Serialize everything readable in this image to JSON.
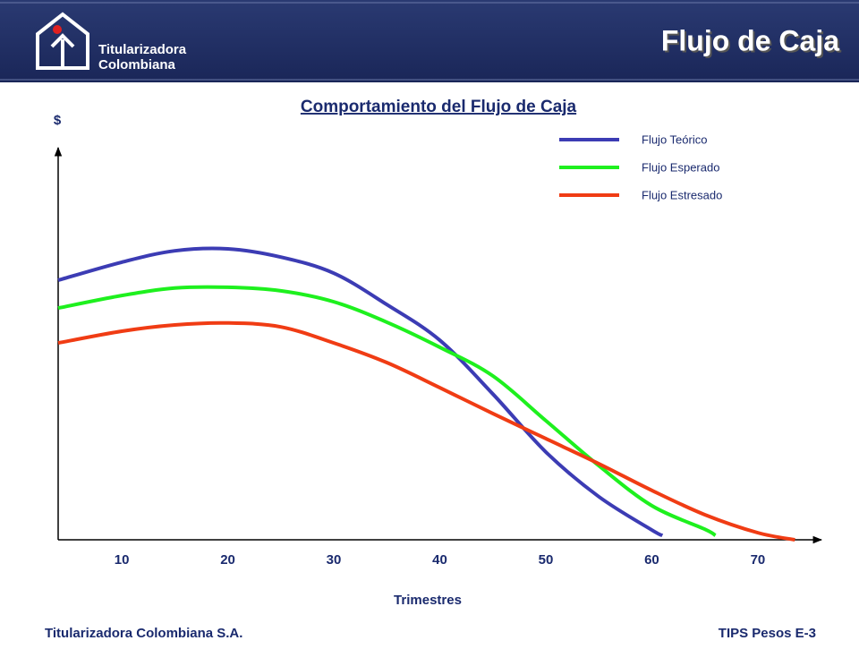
{
  "header": {
    "logo_line1": "Titularizadora",
    "logo_line2": "Colombiana",
    "title": "Flujo de Caja"
  },
  "chart_data": {
    "type": "line",
    "title": "Comportamiento del Flujo de Caja",
    "y_label": "$",
    "x_label": "Trimestres",
    "xlim": [
      4,
      76
    ],
    "xticks": [
      10,
      20,
      30,
      40,
      50,
      60,
      70
    ],
    "ylim": [
      0,
      100
    ],
    "series": [
      {
        "name": "Flujo Teórico",
        "color": "#3c3cb4",
        "x": [
          4,
          10,
          15,
          20,
          25,
          30,
          35,
          40,
          45,
          50,
          55,
          60,
          61
        ],
        "values": [
          66.2,
          70.8,
          73.7,
          74.2,
          72.1,
          68.0,
          60.0,
          50.9,
          37.2,
          22.4,
          11.0,
          2.5,
          1.1
        ]
      },
      {
        "name": "Flujo Esperado",
        "color": "#1ef01e",
        "x": [
          4,
          10,
          15,
          20,
          25,
          30,
          35,
          40,
          45,
          50,
          55,
          60,
          65,
          66
        ],
        "values": [
          59.1,
          62.3,
          64.2,
          64.4,
          63.5,
          60.7,
          55.5,
          49.1,
          41.8,
          30.4,
          18.9,
          8.7,
          2.7,
          1.1
        ]
      },
      {
        "name": "Flujo Estresado",
        "color": "#f03c14",
        "x": [
          4,
          10,
          15,
          20,
          25,
          30,
          35,
          40,
          45,
          50,
          55,
          60,
          65,
          70,
          73.5
        ],
        "values": [
          50.2,
          53.2,
          54.8,
          55.3,
          54.3,
          50.2,
          45.2,
          38.8,
          32.2,
          25.8,
          19.4,
          12.6,
          6.4,
          1.8,
          0
        ]
      }
    ]
  },
  "footer": {
    "left": "Titularizadora Colombiana S.A.",
    "right": "TIPS Pesos E-3"
  }
}
